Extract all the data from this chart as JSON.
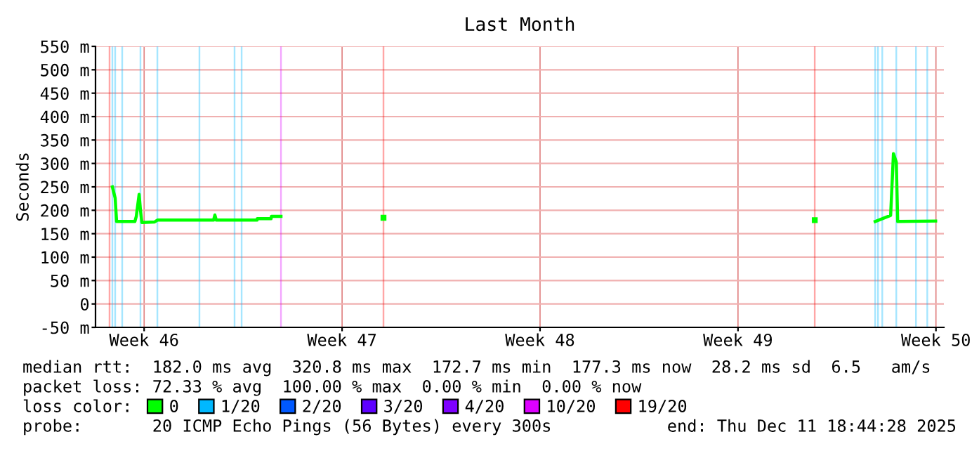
{
  "chart_data": {
    "type": "line",
    "title": "Last Month",
    "ylabel": "Seconds",
    "xlim": [
      "2025-11-11T18:44",
      "2025-12-11T18:44"
    ],
    "xticks": [
      {
        "value": "2025-11-13T12:00",
        "label": "Week 46"
      },
      {
        "value": "2025-11-20T12:00",
        "label": "Week 47"
      },
      {
        "value": "2025-11-27T12:00",
        "label": "Week 48"
      },
      {
        "value": "2025-12-04T12:00",
        "label": "Week 49"
      },
      {
        "value": "2025-12-11T12:00",
        "label": "Week 50"
      }
    ],
    "ylim": [
      -50,
      550
    ],
    "yticks": [
      {
        "value": -50,
        "label": "-50 m"
      },
      0,
      {
        "value": 50,
        "label": "50 m"
      },
      {
        "value": 100,
        "label": "100 m"
      },
      {
        "value": 150,
        "label": "150 m"
      },
      {
        "value": 200,
        "label": "200 m"
      },
      {
        "value": 250,
        "label": "250 m"
      },
      {
        "value": 300,
        "label": "300 m"
      },
      {
        "value": 350,
        "label": "350 m"
      },
      {
        "value": 400,
        "label": "400 m"
      },
      {
        "value": 450,
        "label": "450 m"
      },
      {
        "value": 500,
        "label": "500 m"
      },
      {
        "value": 550,
        "label": "550 m"
      }
    ],
    "grid": true,
    "legend": "bottom",
    "marker": "none",
    "line_style": "solid",
    "series": [
      {
        "name": "0",
        "color": "#00ff00",
        "x": [
          "2025-11-12T09:02",
          "2025-11-12T11:25",
          "2025-11-12T12:37",
          "2025-11-13T04:08",
          "2025-11-13T05:20",
          "2025-11-13T07:44",
          "2025-11-13T08:53",
          "2025-11-13T10:05",
          "2025-11-13T20:50",
          "2025-11-13T23:14",
          "2025-11-15T22:56",
          "2025-11-16T00:02",
          "2025-11-16T01:14",
          "2025-11-17T11:50",
          "2025-11-17T12:00",
          "2025-11-17T23:44",
          "2025-11-18T00:00",
          "2025-11-18T08:08",
          "2025-11-19",
          "2025-11-21T23:08",
          "2025-11-25",
          "2025-12-07T05:08",
          "2025-12-08",
          "2025-12-09T08:26",
          "2025-12-09T21:32",
          "2025-12-09T23:56",
          "2025-12-10T02:20",
          "2025-12-10T03:32",
          "2025-12-11T11:44"
        ],
        "values": [
          250,
          226,
          176,
          176,
          187,
          234,
          200,
          174,
          175,
          179,
          179,
          190,
          179,
          179,
          182,
          182,
          187,
          187,
          null,
          184,
          null,
          179,
          null,
          176,
          189,
          321,
          303,
          176,
          177
        ]
      },
      {
        "name": "1/20",
        "color": "#00b8ff",
        "type": "bar",
        "x": [
          "2025-11-12T09:02",
          "2025-11-12T11:25",
          "2025-11-12T17:23",
          "2025-11-13T08:53",
          "2025-11-13T23:14",
          "2025-11-15T10:56",
          "2025-11-16T16:44",
          "2025-11-16T22:44",
          "2025-12-09T08:26",
          "2025-12-09T10:50",
          "2025-12-09T14:26",
          "2025-12-10T02:20",
          "2025-12-10T19:02",
          "2025-12-11T04:38"
        ],
        "base": [
          -50,
          -50,
          -50,
          -50,
          -50,
          -50,
          -50,
          -50,
          -50,
          -50,
          -50,
          -50,
          -50,
          -50
        ],
        "values": [
          600,
          600,
          600,
          600,
          600,
          600,
          600,
          600,
          600,
          600,
          600,
          600,
          600,
          600
        ]
      },
      {
        "name": "2/20",
        "color": "#0059ff",
        "type": "bar"
      },
      {
        "name": "3/20",
        "color": "#5e00ff",
        "type": "bar"
      },
      {
        "name": "4/20",
        "color": "#7e00ff",
        "type": "bar"
      },
      {
        "name": "10/20",
        "color": "#dd00ff",
        "type": "bar",
        "x": [
          "2025-11-18T08:08"
        ],
        "base": [
          -50
        ],
        "values": [
          600
        ]
      },
      {
        "name": "19/20",
        "color": "#ff0000",
        "type": "bar",
        "x": [
          "2025-11-12T06:38",
          "2025-11-21T23:08",
          "2025-12-07T05:08"
        ],
        "base": [
          -50,
          -50,
          -50
        ],
        "values": [
          600,
          600,
          600
        ]
      }
    ],
    "annotations": [
      "median rtt:  182.0 ms avg  320.8 ms max  172.7 ms min  177.3 ms now  28.2 ms sd  6.5   am/s",
      "packet loss: 72.33 % avg  100.00 % max  0.00 % min  0.00 % now",
      "loss color:",
      "probe:       20 ICMP Echo Pings (56 Bytes) every 300s",
      "end: Thu Dec 11 18:44:28 2025"
    ]
  }
}
